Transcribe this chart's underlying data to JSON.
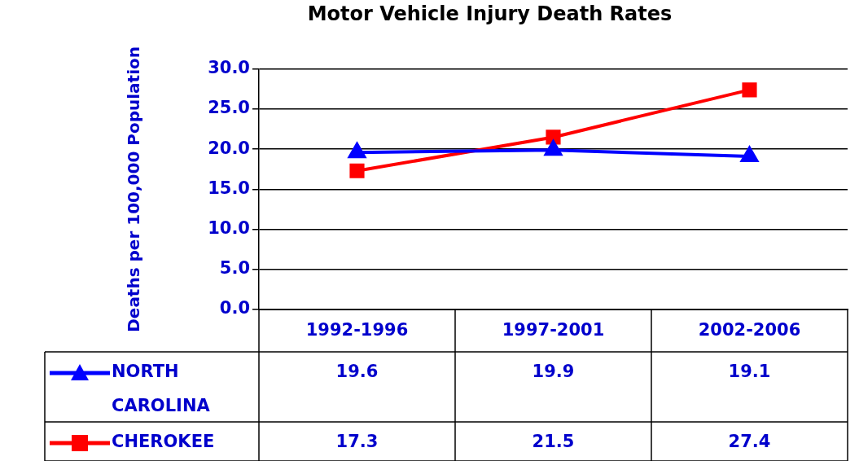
{
  "chart_data": {
    "type": "line",
    "title": "Motor Vehicle Injury Death Rates",
    "ylabel": "Deaths per 100,000 Population",
    "categories": [
      "1992-1996",
      "1997-2001",
      "2002-2006"
    ],
    "series": [
      {
        "name": "NORTH CAROLINA",
        "color": "#0000ff",
        "values": [
          19.6,
          19.9,
          19.1
        ],
        "marker": "triangle"
      },
      {
        "name": "CHEROKEE",
        "color": "#ff0000",
        "values": [
          17.3,
          21.5,
          27.4
        ],
        "marker": "square"
      }
    ],
    "ylim": [
      0,
      30
    ],
    "yticks": [
      {
        "value": 0,
        "label": "0.0"
      },
      {
        "value": 5,
        "label": "5.0"
      },
      {
        "value": 10,
        "label": "10.0"
      },
      {
        "value": 15,
        "label": "15.0"
      },
      {
        "value": 20,
        "label": "20.0"
      },
      {
        "value": 25,
        "label": "25.0"
      },
      {
        "value": 30,
        "label": "30.0"
      }
    ],
    "grid": "y",
    "data_labels": true,
    "legend": "bottom"
  }
}
